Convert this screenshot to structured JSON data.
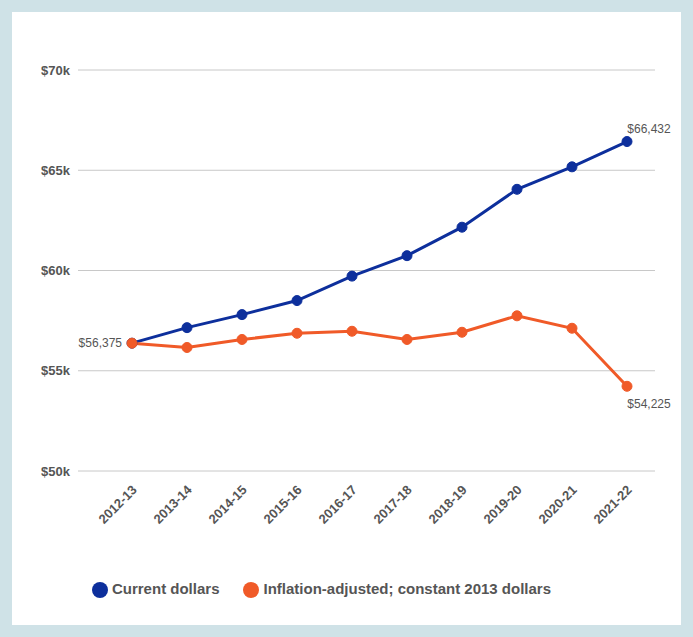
{
  "chart_data": {
    "type": "line",
    "categories": [
      "2012-13",
      "2013-14",
      "2014-15",
      "2015-16",
      "2016-17",
      "2017-18",
      "2018-19",
      "2019-20",
      "2020-21",
      "2021-22"
    ],
    "series": [
      {
        "name": "Current dollars",
        "color": "#0d2f9c",
        "marker": "circle",
        "values": [
          56375,
          57150,
          57800,
          58500,
          59720,
          60740,
          62160,
          64050,
          65170,
          66432
        ],
        "value_labels": [
          "$56,375",
          null,
          null,
          null,
          null,
          null,
          null,
          null,
          null,
          "$66,432"
        ]
      },
      {
        "name": "Inflation-adjusted; constant 2013 dollars",
        "color": "#f05a28",
        "marker": "circle",
        "values": [
          56375,
          56160,
          56560,
          56870,
          56970,
          56560,
          56920,
          57740,
          57120,
          54225
        ],
        "value_labels": [
          null,
          null,
          null,
          null,
          null,
          null,
          null,
          null,
          null,
          "$54,225"
        ]
      }
    ],
    "ylim": [
      50000,
      70000
    ],
    "yticks": [
      {
        "value": 50000,
        "label": "$50k"
      },
      {
        "value": 55000,
        "label": "$55k"
      },
      {
        "value": 60000,
        "label": "$60k"
      },
      {
        "value": 65000,
        "label": "$65k"
      },
      {
        "value": 70000,
        "label": "$70k"
      }
    ],
    "grid": true,
    "legend": "bottom"
  }
}
